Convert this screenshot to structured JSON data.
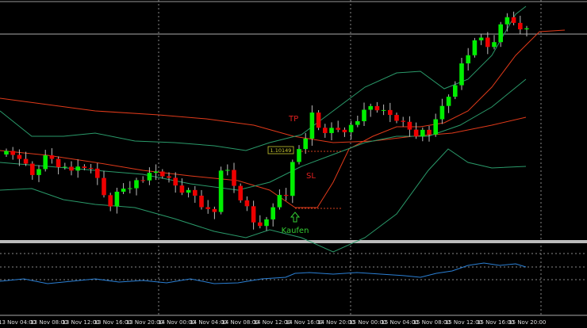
{
  "time_axis": {
    "labels": [
      "13 Nov 04:00",
      "13 Nov 08:00",
      "13 Nov 12:00",
      "13 Nov 16:00",
      "13 Nov 20:00",
      "14 Nov 00:00",
      "14 Nov 04:00",
      "14 Nov 08:00",
      "14 Nov 12:00",
      "14 Nov 16:00",
      "14 Nov 20:00",
      "15 Nov 00:00",
      "15 Nov 04:00",
      "15 Nov 08:00",
      "15 Nov 12:00",
      "15 Nov 16:00",
      "15 Nov 20:00"
    ]
  },
  "annotations": {
    "take_profit": "TP",
    "stop_loss": "SL",
    "buy": "Kaufen",
    "price_tag": "1.10149"
  }
}
